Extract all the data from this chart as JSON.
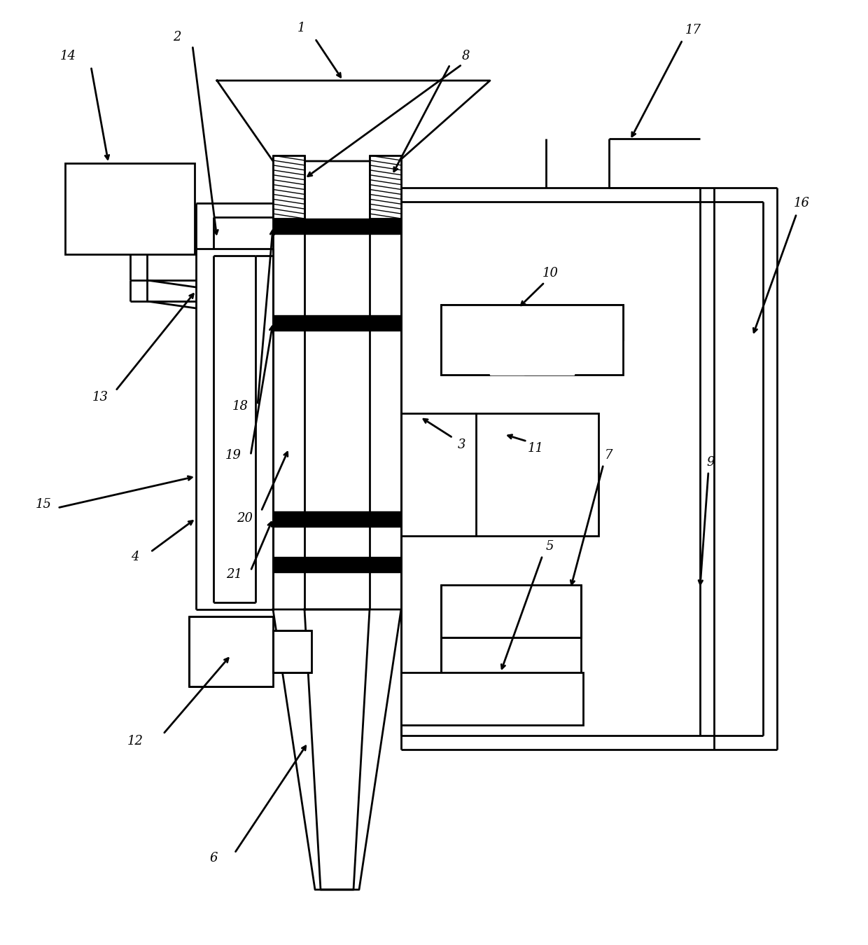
{
  "fig_width": 12.4,
  "fig_height": 13.49,
  "dpi": 100,
  "bg": "#ffffff",
  "lc": "#000000",
  "lw": 2.0,
  "lw_thin": 1.0,
  "lw_thick": 7.0
}
